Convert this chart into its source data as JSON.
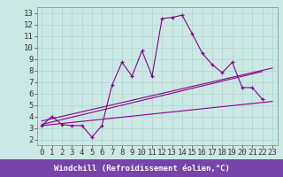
{
  "title": "",
  "xlabel": "Windchill (Refroidissement éolien,°C)",
  "ylabel": "",
  "bg_color": "#cce8e4",
  "grid_color": "#aad4d0",
  "line_color": "#880088",
  "xlim": [
    -0.5,
    23.5
  ],
  "ylim": [
    1.5,
    13.5
  ],
  "xticks": [
    0,
    1,
    2,
    3,
    4,
    5,
    6,
    7,
    8,
    9,
    10,
    11,
    12,
    13,
    14,
    15,
    16,
    17,
    18,
    19,
    20,
    21,
    22,
    23
  ],
  "yticks": [
    2,
    3,
    4,
    5,
    6,
    7,
    8,
    9,
    10,
    11,
    12,
    13
  ],
  "main_x": [
    0,
    1,
    2,
    3,
    4,
    5,
    6,
    7,
    8,
    9,
    10,
    11,
    12,
    13,
    14,
    15,
    16,
    17,
    18,
    19,
    20,
    21,
    22
  ],
  "main_y": [
    3.2,
    4.0,
    3.3,
    3.2,
    3.2,
    2.2,
    3.2,
    6.7,
    8.7,
    7.5,
    9.7,
    7.5,
    12.5,
    12.6,
    12.8,
    11.2,
    9.5,
    8.5,
    7.8,
    8.7,
    6.5,
    6.5,
    5.5
  ],
  "line2_x": [
    0,
    23
  ],
  "line2_y": [
    3.2,
    5.3
  ],
  "line3_x": [
    0,
    23
  ],
  "line3_y": [
    3.6,
    8.2
  ],
  "line4_x": [
    0,
    22
  ],
  "line4_y": [
    3.3,
    7.9
  ],
  "xlabel_bg": "#7744aa",
  "xlabel_fg": "#ffffff",
  "font_family": "monospace",
  "font_size": 6.5,
  "tick_font_size": 6.5
}
